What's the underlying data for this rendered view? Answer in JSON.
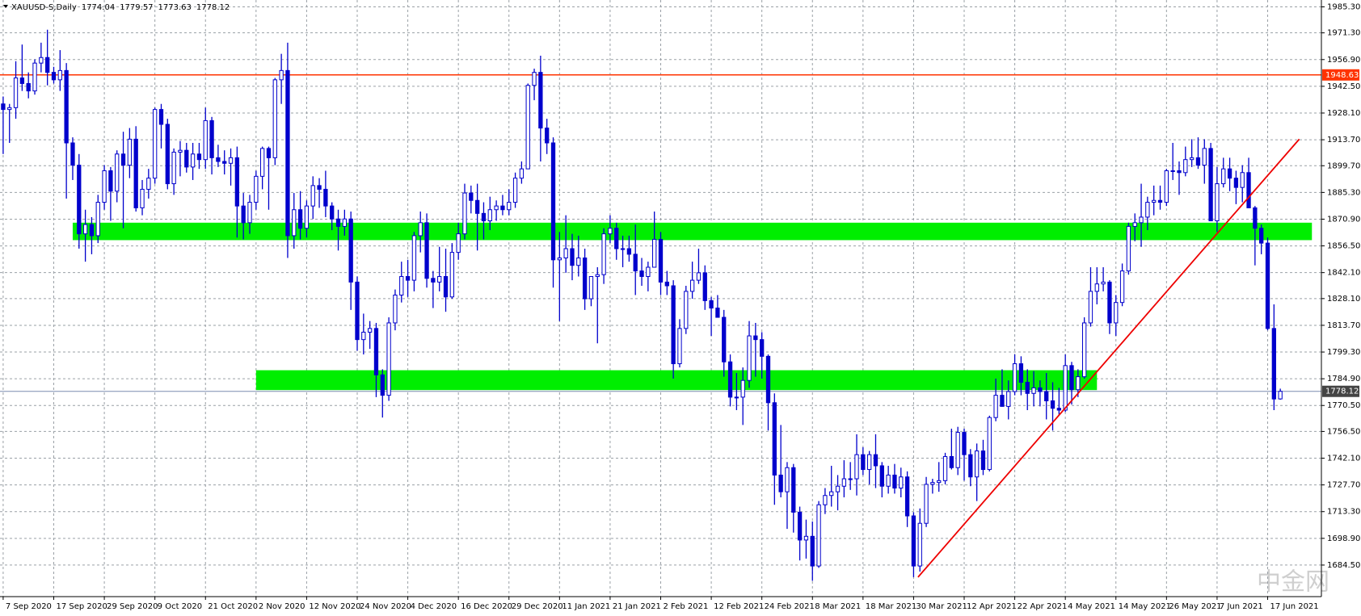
{
  "chart_data": {
    "type": "candlestick",
    "symbol": "XAUUSD-S,Daily",
    "watermark": "中金网",
    "categories": [
      "7 Sep 2020",
      null,
      null,
      null,
      null,
      null,
      null,
      null,
      "17 Sep 2020",
      null,
      null,
      null,
      null,
      null,
      null,
      null,
      "29 Sep 2020",
      null,
      null,
      null,
      null,
      null,
      null,
      null,
      "9 Oct 2020",
      null,
      null,
      null,
      null,
      null,
      null,
      null,
      "21 Oct 2020",
      null,
      null,
      null,
      null,
      null,
      null,
      null,
      "2 Nov 2020",
      null,
      null,
      null,
      null,
      null,
      null,
      null,
      "12 Nov 2020",
      null,
      null,
      null,
      null,
      null,
      null,
      null,
      "24 Nov 2020",
      null,
      null,
      null,
      null,
      null,
      null,
      null,
      "4 Dec 2020",
      null,
      null,
      null,
      null,
      null,
      null,
      null,
      "16 Dec 2020",
      null,
      null,
      null,
      null,
      null,
      null,
      null,
      "29 Dec 2020",
      null,
      null,
      null,
      null,
      null,
      null,
      null,
      "11 Jan 2021",
      null,
      null,
      null,
      null,
      null,
      null,
      null,
      "21 Jan 2021",
      null,
      null,
      null,
      null,
      null,
      null,
      null,
      "2 Feb 2021",
      null,
      null,
      null,
      null,
      null,
      null,
      null,
      "12 Feb 2021",
      null,
      null,
      null,
      null,
      null,
      null,
      null,
      "24 Feb 2021",
      null,
      null,
      null,
      null,
      null,
      null,
      null,
      "8 Mar 2021",
      null,
      null,
      null,
      null,
      null,
      null,
      null,
      "18 Mar 2021",
      null,
      null,
      null,
      null,
      null,
      null,
      null,
      "30 Mar 2021",
      null,
      null,
      null,
      null,
      null,
      null,
      null,
      "12 Apr 2021",
      null,
      null,
      null,
      null,
      null,
      null,
      null,
      "22 Apr 2021",
      null,
      null,
      null,
      null,
      null,
      null,
      null,
      "4 May 2021",
      null,
      null,
      null,
      null,
      null,
      null,
      null,
      "14 May 2021",
      null,
      null,
      null,
      null,
      null,
      null,
      null,
      "26 May 2021",
      null,
      null,
      null,
      null,
      null,
      null,
      null,
      "7 Jun 2021",
      null,
      null,
      null,
      null,
      null,
      null,
      null,
      "17 Jun 2021",
      null,
      null
    ],
    "candles": [
      [
        1933,
        1937,
        1906,
        1930
      ],
      [
        1930,
        1933,
        1912,
        1931
      ],
      [
        1931,
        1956,
        1925,
        1947
      ],
      [
        1947,
        1965,
        1940,
        1944
      ],
      [
        1944,
        1950,
        1936,
        1940
      ],
      [
        1940,
        1957,
        1938,
        1955
      ],
      [
        1955,
        1966,
        1950,
        1958
      ],
      [
        1958,
        1973,
        1943,
        1950
      ],
      [
        1950,
        1953,
        1944,
        1946
      ],
      [
        1946,
        1962,
        1940,
        1951
      ],
      [
        1951,
        1955,
        1882,
        1912
      ],
      [
        1912,
        1915,
        1892,
        1900
      ],
      [
        1900,
        1906,
        1855,
        1863
      ],
      [
        1863,
        1876,
        1848,
        1868
      ],
      [
        1868,
        1872,
        1852,
        1862
      ],
      [
        1862,
        1884,
        1858,
        1880
      ],
      [
        1880,
        1900,
        1876,
        1897
      ],
      [
        1897,
        1899,
        1870,
        1886
      ],
      [
        1886,
        1908,
        1880,
        1906
      ],
      [
        1906,
        1918,
        1866,
        1900
      ],
      [
        1900,
        1920,
        1893,
        1914
      ],
      [
        1914,
        1921,
        1875,
        1877
      ],
      [
        1877,
        1892,
        1873,
        1887
      ],
      [
        1887,
        1898,
        1882,
        1893
      ],
      [
        1893,
        1931,
        1890,
        1930
      ],
      [
        1930,
        1933,
        1909,
        1922
      ],
      [
        1922,
        1925,
        1887,
        1890
      ],
      [
        1890,
        1909,
        1884,
        1907
      ],
      [
        1907,
        1913,
        1894,
        1908
      ],
      [
        1908,
        1912,
        1896,
        1899
      ],
      [
        1899,
        1912,
        1892,
        1906
      ],
      [
        1906,
        1912,
        1898,
        1903
      ],
      [
        1903,
        1931,
        1898,
        1924
      ],
      [
        1924,
        1926,
        1895,
        1904
      ],
      [
        1904,
        1911,
        1899,
        1902
      ],
      [
        1902,
        1908,
        1895,
        1901
      ],
      [
        1901,
        1909,
        1889,
        1904
      ],
      [
        1904,
        1910,
        1861,
        1878
      ],
      [
        1878,
        1885,
        1860,
        1869
      ],
      [
        1869,
        1884,
        1863,
        1880
      ],
      [
        1880,
        1897,
        1876,
        1894
      ],
      [
        1894,
        1910,
        1887,
        1909
      ],
      [
        1909,
        1910,
        1876,
        1904
      ],
      [
        1904,
        1947,
        1900,
        1946
      ],
      [
        1946,
        1960,
        1933,
        1951
      ],
      [
        1951,
        1966,
        1850,
        1862
      ],
      [
        1862,
        1885,
        1855,
        1876
      ],
      [
        1876,
        1886,
        1860,
        1866
      ],
      [
        1866,
        1881,
        1861,
        1878
      ],
      [
        1878,
        1894,
        1871,
        1889
      ],
      [
        1889,
        1893,
        1877,
        1887
      ],
      [
        1887,
        1897,
        1872,
        1878
      ],
      [
        1878,
        1880,
        1865,
        1871
      ],
      [
        1871,
        1876,
        1854,
        1867
      ],
      [
        1867,
        1876,
        1862,
        1871
      ],
      [
        1871,
        1875,
        1822,
        1837
      ],
      [
        1837,
        1840,
        1800,
        1806
      ],
      [
        1806,
        1820,
        1798,
        1810
      ],
      [
        1810,
        1816,
        1801,
        1812
      ],
      [
        1812,
        1815,
        1775,
        1787
      ],
      [
        1787,
        1790,
        1764,
        1776
      ],
      [
        1776,
        1818,
        1773,
        1815
      ],
      [
        1815,
        1833,
        1811,
        1830
      ],
      [
        1830,
        1848,
        1826,
        1840
      ],
      [
        1840,
        1849,
        1829,
        1838
      ],
      [
        1838,
        1864,
        1832,
        1862
      ],
      [
        1862,
        1875,
        1853,
        1869
      ],
      [
        1869,
        1874,
        1834,
        1839
      ],
      [
        1839,
        1843,
        1823,
        1837
      ],
      [
        1837,
        1856,
        1832,
        1840
      ],
      [
        1840,
        1855,
        1821,
        1829
      ],
      [
        1829,
        1858,
        1828,
        1853
      ],
      [
        1853,
        1869,
        1849,
        1863
      ],
      [
        1863,
        1890,
        1860,
        1885
      ],
      [
        1885,
        1889,
        1874,
        1881
      ],
      [
        1881,
        1890,
        1854,
        1874
      ],
      [
        1874,
        1880,
        1860,
        1870
      ],
      [
        1870,
        1883,
        1865,
        1876
      ],
      [
        1876,
        1881,
        1870,
        1878
      ],
      [
        1878,
        1884,
        1873,
        1876
      ],
      [
        1876,
        1887,
        1873,
        1880
      ],
      [
        1880,
        1896,
        1877,
        1893
      ],
      [
        1893,
        1902,
        1890,
        1898
      ],
      [
        1898,
        1944,
        1898,
        1943
      ],
      [
        1943,
        1952,
        1935,
        1950
      ],
      [
        1950,
        1959,
        1902,
        1920
      ],
      [
        1920,
        1925,
        1906,
        1912
      ],
      [
        1912,
        1915,
        1834,
        1849
      ],
      [
        1849,
        1864,
        1816,
        1850
      ],
      [
        1850,
        1873,
        1842,
        1855
      ],
      [
        1855,
        1863,
        1838,
        1846
      ],
      [
        1846,
        1862,
        1840,
        1850
      ],
      [
        1850,
        1855,
        1822,
        1828
      ],
      [
        1828,
        1840,
        1824,
        1840
      ],
      [
        1840,
        1845,
        1804,
        1841
      ],
      [
        1841,
        1866,
        1836,
        1863
      ],
      [
        1863,
        1873,
        1858,
        1866
      ],
      [
        1866,
        1869,
        1849,
        1855
      ],
      [
        1855,
        1862,
        1845,
        1855
      ],
      [
        1855,
        1862,
        1848,
        1852
      ],
      [
        1852,
        1868,
        1830,
        1843
      ],
      [
        1843,
        1850,
        1835,
        1840
      ],
      [
        1840,
        1848,
        1832,
        1845
      ],
      [
        1845,
        1875,
        1845,
        1860
      ],
      [
        1860,
        1864,
        1830,
        1837
      ],
      [
        1837,
        1843,
        1830,
        1835
      ],
      [
        1835,
        1838,
        1785,
        1793
      ],
      [
        1793,
        1817,
        1791,
        1812
      ],
      [
        1812,
        1835,
        1809,
        1832
      ],
      [
        1832,
        1848,
        1828,
        1838
      ],
      [
        1838,
        1855,
        1836,
        1842
      ],
      [
        1842,
        1846,
        1822,
        1827
      ],
      [
        1827,
        1829,
        1808,
        1823
      ],
      [
        1823,
        1830,
        1818,
        1818
      ],
      [
        1818,
        1822,
        1786,
        1794
      ],
      [
        1794,
        1798,
        1770,
        1775
      ],
      [
        1775,
        1788,
        1768,
        1775
      ],
      [
        1775,
        1791,
        1760,
        1784
      ],
      [
        1784,
        1816,
        1780,
        1808
      ],
      [
        1808,
        1815,
        1786,
        1806
      ],
      [
        1806,
        1810,
        1785,
        1797
      ],
      [
        1797,
        1798,
        1757,
        1772
      ],
      [
        1772,
        1777,
        1717,
        1733
      ],
      [
        1733,
        1760,
        1721,
        1724
      ],
      [
        1724,
        1740,
        1704,
        1737
      ],
      [
        1737,
        1739,
        1702,
        1713
      ],
      [
        1713,
        1716,
        1687,
        1698
      ],
      [
        1698,
        1709,
        1688,
        1700
      ],
      [
        1700,
        1708,
        1676,
        1684
      ],
      [
        1684,
        1719,
        1683,
        1717
      ],
      [
        1717,
        1726,
        1712,
        1722
      ],
      [
        1722,
        1738,
        1716,
        1724
      ],
      [
        1724,
        1733,
        1714,
        1727
      ],
      [
        1727,
        1741,
        1721,
        1731
      ],
      [
        1731,
        1740,
        1725,
        1731
      ],
      [
        1731,
        1755,
        1722,
        1744
      ],
      [
        1744,
        1748,
        1733,
        1736
      ],
      [
        1736,
        1746,
        1728,
        1744
      ],
      [
        1744,
        1755,
        1726,
        1738
      ],
      [
        1738,
        1740,
        1721,
        1727
      ],
      [
        1727,
        1738,
        1723,
        1733
      ],
      [
        1733,
        1739,
        1723,
        1726
      ],
      [
        1726,
        1737,
        1721,
        1732
      ],
      [
        1732,
        1735,
        1705,
        1711
      ],
      [
        1711,
        1713,
        1678,
        1684
      ],
      [
        1684,
        1715,
        1681,
        1707
      ],
      [
        1707,
        1732,
        1705,
        1728
      ],
      [
        1728,
        1731,
        1723,
        1729
      ],
      [
        1729,
        1740,
        1724,
        1730
      ],
      [
        1730,
        1745,
        1728,
        1743
      ],
      [
        1743,
        1758,
        1736,
        1737
      ],
      [
        1737,
        1759,
        1733,
        1756
      ],
      [
        1756,
        1758,
        1730,
        1744
      ],
      [
        1744,
        1747,
        1727,
        1732
      ],
      [
        1732,
        1750,
        1719,
        1746
      ],
      [
        1746,
        1752,
        1733,
        1736
      ],
      [
        1736,
        1765,
        1735,
        1764
      ],
      [
        1764,
        1785,
        1762,
        1776
      ],
      [
        1776,
        1790,
        1770,
        1770
      ],
      [
        1770,
        1784,
        1763,
        1778
      ],
      [
        1778,
        1798,
        1776,
        1793
      ],
      [
        1793,
        1797,
        1776,
        1783
      ],
      [
        1783,
        1790,
        1768,
        1777
      ],
      [
        1777,
        1789,
        1770,
        1780
      ],
      [
        1780,
        1784,
        1770,
        1778
      ],
      [
        1778,
        1788,
        1763,
        1773
      ],
      [
        1773,
        1783,
        1757,
        1769
      ],
      [
        1769,
        1780,
        1765,
        1768
      ],
      [
        1768,
        1798,
        1767,
        1792
      ],
      [
        1792,
        1794,
        1771,
        1779
      ],
      [
        1779,
        1790,
        1775,
        1786
      ],
      [
        1786,
        1818,
        1785,
        1815
      ],
      [
        1815,
        1845,
        1813,
        1832
      ],
      [
        1832,
        1845,
        1825,
        1836
      ],
      [
        1836,
        1845,
        1832,
        1837
      ],
      [
        1837,
        1838,
        1809,
        1815
      ],
      [
        1815,
        1830,
        1808,
        1826
      ],
      [
        1826,
        1847,
        1824,
        1843
      ],
      [
        1843,
        1869,
        1841,
        1867
      ],
      [
        1867,
        1874,
        1859,
        1869
      ],
      [
        1869,
        1890,
        1856,
        1872
      ],
      [
        1872,
        1883,
        1865,
        1880
      ],
      [
        1880,
        1889,
        1873,
        1881
      ],
      [
        1881,
        1889,
        1876,
        1880
      ],
      [
        1880,
        1898,
        1878,
        1897
      ],
      [
        1897,
        1912,
        1892,
        1897
      ],
      [
        1897,
        1902,
        1884,
        1896
      ],
      [
        1896,
        1910,
        1894,
        1903
      ],
      [
        1903,
        1914,
        1899,
        1904
      ],
      [
        1904,
        1915,
        1898,
        1900
      ],
      [
        1900,
        1914,
        1890,
        1909
      ],
      [
        1909,
        1912,
        1870,
        1870
      ],
      [
        1870,
        1899,
        1864,
        1890
      ],
      [
        1890,
        1904,
        1888,
        1898
      ],
      [
        1898,
        1904,
        1886,
        1893
      ],
      [
        1893,
        1897,
        1879,
        1888
      ],
      [
        1888,
        1900,
        1880,
        1896
      ],
      [
        1896,
        1904,
        1877,
        1877
      ],
      [
        1877,
        1878,
        1846,
        1866
      ],
      [
        1866,
        1868,
        1852,
        1858
      ],
      [
        1858,
        1861,
        1811,
        1812
      ],
      [
        1812,
        1825,
        1768,
        1774
      ],
      [
        1774.04,
        1779.57,
        1773.63,
        1778.12
      ]
    ],
    "color": "#0000cc",
    "ylim": [
      1667.5,
      1989
    ],
    "yticks": [
      {
        "value": 1985.3,
        "label": "1985.30"
      },
      {
        "value": 1971.3,
        "label": "1971.30"
      },
      {
        "value": 1956.9,
        "label": "1956.90"
      },
      {
        "value": 1942.5,
        "label": "1942.50"
      },
      {
        "value": 1928.1,
        "label": "1928.10"
      },
      {
        "value": 1913.7,
        "label": "1913.70"
      },
      {
        "value": 1899.7,
        "label": "1899.70"
      },
      {
        "value": 1885.3,
        "label": "1885.30"
      },
      {
        "value": 1870.9,
        "label": "1870.90"
      },
      {
        "value": 1856.5,
        "label": "1856.50"
      },
      {
        "value": 1842.1,
        "label": "1842.10"
      },
      {
        "value": 1828.1,
        "label": "1828.10"
      },
      {
        "value": 1813.7,
        "label": "1813.70"
      },
      {
        "value": 1799.3,
        "label": "1799.30"
      },
      {
        "value": 1784.9,
        "label": "1784.90"
      },
      {
        "value": 1770.5,
        "label": "1770.50"
      },
      {
        "value": 1756.5,
        "label": "1756.50"
      },
      {
        "value": 1742.1,
        "label": "1742.10"
      },
      {
        "value": 1727.7,
        "label": "1727.70"
      },
      {
        "value": 1713.3,
        "label": "1713.30"
      },
      {
        "value": 1698.9,
        "label": "1698.90"
      },
      {
        "value": 1684.5,
        "label": "1684.50"
      }
    ],
    "grid": true,
    "hline": {
      "value": 1948.63,
      "color": "#ff3300"
    },
    "zones": [
      {
        "x": [
          11,
          207
        ],
        "y": [
          1859.6,
          1869
        ],
        "color": "#00ee00"
      },
      {
        "x": [
          40,
          173
        ],
        "y": [
          1778.8,
          1789.5
        ],
        "color": "#00ee00"
      }
    ],
    "trendline": {
      "x": [
        144.7,
        205
      ],
      "y": [
        1678,
        1914
      ],
      "color": "#ee0000"
    }
  }
}
